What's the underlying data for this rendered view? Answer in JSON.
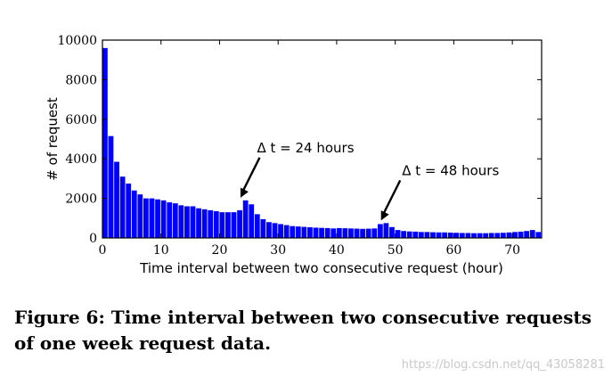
{
  "chart_data": {
    "type": "bar",
    "xlabel": "Time interval between two consecutive request (hour)",
    "ylabel": "# of request",
    "xlim": [
      0,
      75
    ],
    "ylim": [
      0,
      10000
    ],
    "x_ticks": [
      0,
      10,
      20,
      30,
      40,
      50,
      60,
      70
    ],
    "y_ticks": [
      0,
      2000,
      4000,
      6000,
      8000,
      10000
    ],
    "bar_color": "#0000ff",
    "bin_width": 1,
    "x": [
      0,
      1,
      2,
      3,
      4,
      5,
      6,
      7,
      8,
      9,
      10,
      11,
      12,
      13,
      14,
      15,
      16,
      17,
      18,
      19,
      20,
      21,
      22,
      23,
      24,
      25,
      26,
      27,
      28,
      29,
      30,
      31,
      32,
      33,
      34,
      35,
      36,
      37,
      38,
      39,
      40,
      41,
      42,
      43,
      44,
      45,
      46,
      47,
      48,
      49,
      50,
      51,
      52,
      53,
      54,
      55,
      56,
      57,
      58,
      59,
      60,
      61,
      62,
      63,
      64,
      65,
      66,
      67,
      68,
      69,
      70,
      71,
      72,
      73,
      74
    ],
    "values": [
      9600,
      5150,
      3850,
      3100,
      2750,
      2400,
      2200,
      2000,
      2000,
      1950,
      1900,
      1800,
      1750,
      1650,
      1600,
      1600,
      1500,
      1450,
      1400,
      1350,
      1300,
      1300,
      1300,
      1400,
      1900,
      1700,
      1200,
      950,
      800,
      750,
      700,
      650,
      600,
      580,
      560,
      540,
      520,
      510,
      500,
      480,
      500,
      490,
      480,
      470,
      460,
      470,
      480,
      700,
      750,
      550,
      400,
      350,
      330,
      320,
      300,
      300,
      290,
      280,
      280,
      270,
      260,
      250,
      250,
      240,
      240,
      240,
      250,
      250,
      260,
      280,
      300,
      320,
      350,
      400,
      300
    ],
    "annotations": [
      {
        "text": "Δ t = 24 hours",
        "x": 23.5,
        "y": 1900
      },
      {
        "text": "Δ t = 48 hours",
        "x": 47.5,
        "y": 750
      }
    ]
  },
  "caption": "Figure 6: Time interval between two consecutive requests of one week request data.",
  "watermark": "https://blog.csdn.net/qq_43058281"
}
